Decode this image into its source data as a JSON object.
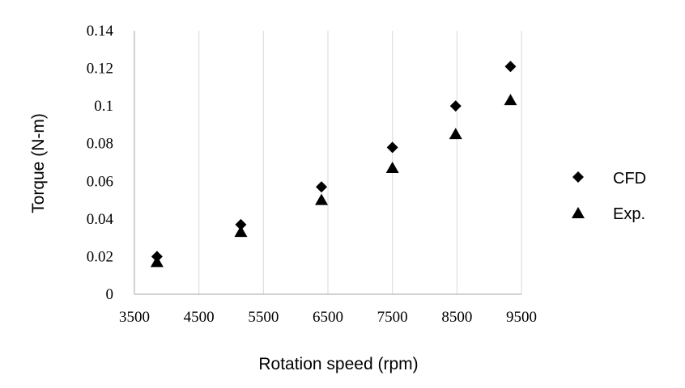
{
  "chart_data": {
    "type": "scatter",
    "title": "",
    "xlabel": "Rotation speed (rpm)",
    "ylabel": "Torque (N-m)",
    "xlim": [
      3500,
      9500
    ],
    "ylim": [
      0,
      0.14
    ],
    "x_ticks": [
      "3500",
      "4500",
      "5500",
      "6500",
      "7500",
      "8500",
      "9500"
    ],
    "y_ticks": [
      "0",
      "0.02",
      "0.04",
      "0.06",
      "0.08",
      "0.1",
      "0.12",
      "0.14"
    ],
    "grid": {
      "vertical": true,
      "horizontal": false
    },
    "legend_position": "right",
    "series": [
      {
        "name": "CFD",
        "marker": "diamond",
        "color": "#000000",
        "points": [
          [
            3850,
            0.02
          ],
          [
            5150,
            0.037
          ],
          [
            6400,
            0.057
          ],
          [
            7500,
            0.078
          ],
          [
            8480,
            0.1
          ],
          [
            9330,
            0.121
          ]
        ]
      },
      {
        "name": "Exp.",
        "marker": "triangle",
        "color": "#000000",
        "points": [
          [
            3850,
            0.017
          ],
          [
            5150,
            0.033
          ],
          [
            6400,
            0.05
          ],
          [
            7500,
            0.067
          ],
          [
            8480,
            0.085
          ],
          [
            9330,
            0.103
          ]
        ]
      }
    ]
  }
}
